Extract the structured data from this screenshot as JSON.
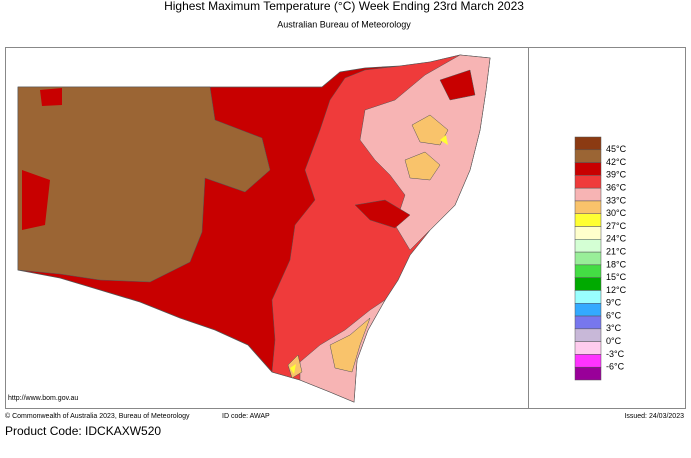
{
  "header": {
    "title": "Highest Maximum Temperature (°C)   Week Ending 23rd March 2023",
    "subtitle": "Australian Bureau of Meteorology"
  },
  "legend": {
    "labels": [
      "45°C",
      "42°C",
      "39°C",
      "36°C",
      "33°C",
      "30°C",
      "27°C",
      "24°C",
      "21°C",
      "18°C",
      "15°C",
      "12°C",
      "9°C",
      "6°C",
      "3°C",
      "0°C",
      "-3°C",
      "-6°C"
    ],
    "colors": [
      "#8b3a12",
      "#9b6534",
      "#c80000",
      "#ef3b3b",
      "#f7b4b4",
      "#f9c36b",
      "#ffff33",
      "#ffffcc",
      "#d4ffd4",
      "#99ee99",
      "#44dd44",
      "#00aa00",
      "#99ffff",
      "#33aaff",
      "#7777ee",
      "#c8b8d8",
      "#ffccee",
      "#ff33ff",
      "#990099"
    ]
  },
  "map": {
    "url": "http://www.bom.gov.au"
  },
  "footer": {
    "copyright": "© Commonwealth of Australia 2023, Bureau of Meteorology",
    "id_code": "ID code: AWAP",
    "issued": "Issued: 24/03/2023",
    "product_code": "Product Code: IDCKAXW520"
  }
}
